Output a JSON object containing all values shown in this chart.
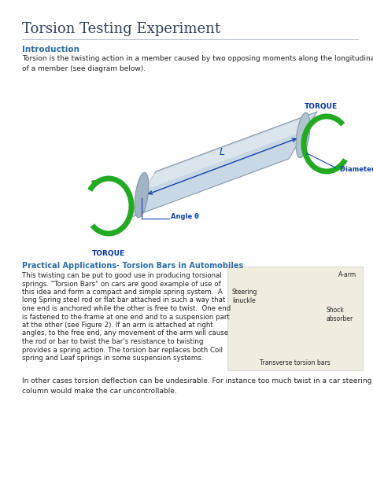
{
  "title": "Torsion Testing Experiment",
  "title_color": "#2e4057",
  "title_fontsize": 13,
  "bg_color": "#ffffff",
  "intro_heading": "Introduction",
  "intro_heading_color": "#2e6da4",
  "intro_text": "Torsion is the twisting action in a member caused by two opposing moments along the longitudinal axis\nof a member (see diagram below).",
  "intro_text_color": "#222222",
  "intro_text_fontsize": 6.5,
  "section2_heading": "Practical Applications- Torsion Bars in Automobiles",
  "section2_heading_color": "#2e6da4",
  "section2_text_lines": [
    "This twisting can be put to good use in producing torsional",
    "springs. \"Torsion Bars\" on cars are good example of use of",
    "this idea and form a compact and simple spring system.  A",
    "long Spring steel rod or flat bar attached in such a way that",
    "one end is anchored while the other is free to twist.  One end",
    "is fastened to the frame at one end and to a suspension part",
    "at the other (see Figure 2). If an arm is attached at right",
    "angles, to the free end, any movement of the arm will cause",
    "the rod or bar to twist the bar's resistance to twisting",
    "provides a spring action. The torsion bar replaces both Coil",
    "spring and Leaf springs in some suspension systems."
  ],
  "section3_text": "In other cases torsion deflection can be undesirable. For instance too much twist in a car steering\ncolumn would make the car uncontrollable.",
  "divider_color": "#b0b8cc",
  "green_color": "#22aa22",
  "blue_label_color": "#1144aa",
  "fig1_torque_top": "TORQUE",
  "fig1_torque_bottom": "TORQUE",
  "fig1_length": "L",
  "fig1_diameter": "Diameter D",
  "fig1_angle": "Angle θ",
  "fig2_a_arm": "A-arm",
  "fig2_steering": "Steering\nknuckle",
  "fig2_shock": "Shock\nabsorber",
  "fig2_transverse": "Transverse torsion bars",
  "cyl_body_color": "#c8d8e4",
  "cyl_edge_color": "#8899aa",
  "cyl_highlight": "#e8eef2",
  "cyl_dark": "#9aaab8"
}
